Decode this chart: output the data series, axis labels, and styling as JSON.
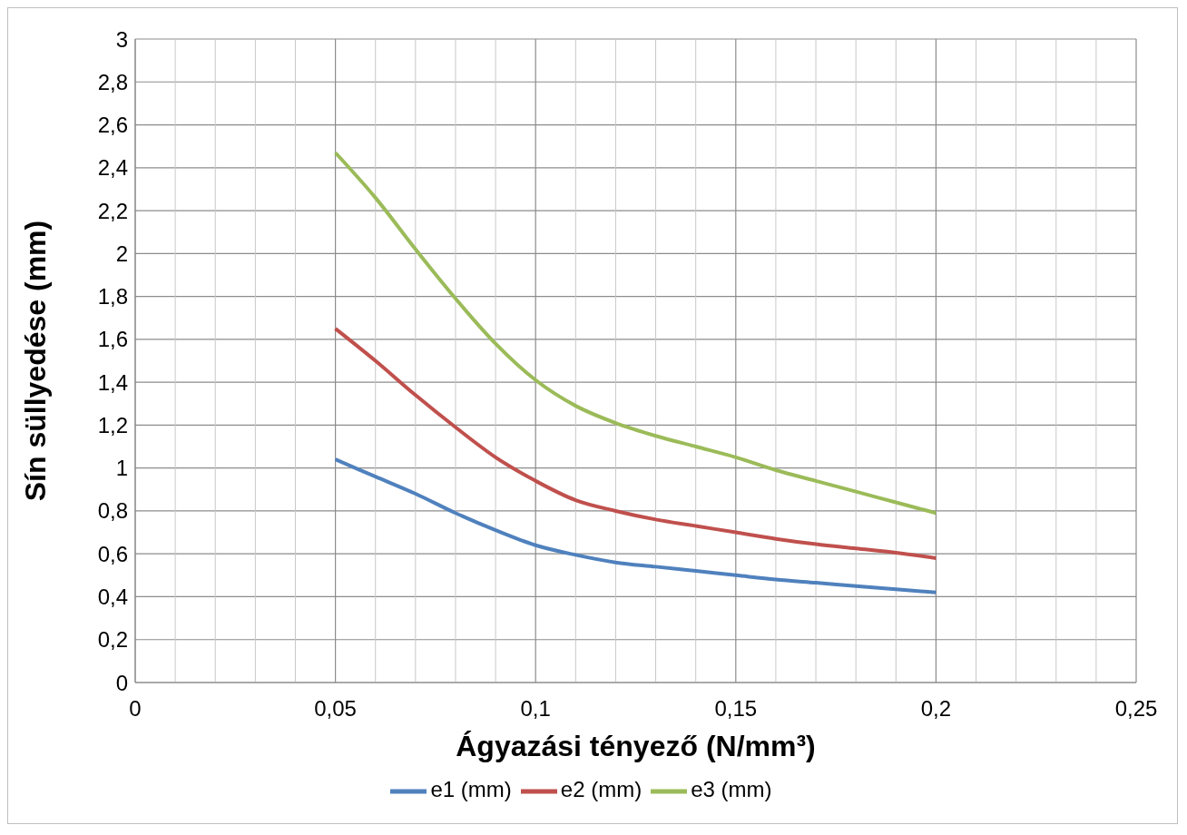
{
  "chart_data": {
    "type": "line",
    "xlabel": "Ágyazási tényező (N/mm³)",
    "ylabel": "Sín süllyedése (mm)",
    "x": [
      0.05,
      0.06,
      0.07,
      0.08,
      0.09,
      0.1,
      0.11,
      0.12,
      0.13,
      0.14,
      0.15,
      0.16,
      0.17,
      0.18,
      0.19,
      0.2
    ],
    "series": [
      {
        "name": "e1 (mm)",
        "color": "#4f81bd",
        "values": [
          1.04,
          0.96,
          0.88,
          0.79,
          0.71,
          0.64,
          0.595,
          0.56,
          0.54,
          0.52,
          0.5,
          0.48,
          0.465,
          0.45,
          0.435,
          0.42
        ]
      },
      {
        "name": "e2 (mm)",
        "color": "#c0504d",
        "values": [
          1.65,
          1.5,
          1.34,
          1.19,
          1.05,
          0.94,
          0.85,
          0.8,
          0.76,
          0.73,
          0.7,
          0.67,
          0.645,
          0.625,
          0.605,
          0.58
        ]
      },
      {
        "name": "e3 (mm)",
        "color": "#9bbb59",
        "values": [
          2.47,
          2.26,
          2.02,
          1.79,
          1.58,
          1.41,
          1.29,
          1.21,
          1.15,
          1.1,
          1.05,
          0.99,
          0.94,
          0.89,
          0.84,
          0.79
        ]
      }
    ],
    "xlim": [
      0,
      0.25
    ],
    "xticks": [
      0,
      {
        "value": 0.01,
        "label": null
      },
      {
        "value": 0.02,
        "label": null
      },
      {
        "value": 0.03,
        "label": null
      },
      {
        "value": 0.04,
        "label": null
      },
      {
        "value": 0.05,
        "label": "0,05"
      },
      {
        "value": 0.06,
        "label": null
      },
      {
        "value": 0.07,
        "label": null
      },
      {
        "value": 0.08,
        "label": null
      },
      {
        "value": 0.09,
        "label": null
      },
      {
        "value": 0.1,
        "label": "0,1"
      },
      {
        "value": 0.11,
        "label": null
      },
      {
        "value": 0.12,
        "label": null
      },
      {
        "value": 0.13,
        "label": null
      },
      {
        "value": 0.14,
        "label": null
      },
      {
        "value": 0.15,
        "label": "0,15"
      },
      {
        "value": 0.16,
        "label": null
      },
      {
        "value": 0.17,
        "label": null
      },
      {
        "value": 0.18,
        "label": null
      },
      {
        "value": 0.19,
        "label": null
      },
      {
        "value": 0.2,
        "label": "0,2"
      },
      {
        "value": 0.21,
        "label": null
      },
      {
        "value": 0.22,
        "label": null
      },
      {
        "value": 0.23,
        "label": null
      },
      {
        "value": 0.24,
        "label": null
      },
      {
        "value": 0.25,
        "label": "0,25"
      }
    ],
    "ylim": [
      0,
      3
    ],
    "yticks": [
      0,
      {
        "value": 0.2,
        "label": "0,2"
      },
      {
        "value": 0.4,
        "label": "0,4"
      },
      {
        "value": 0.6,
        "label": "0,6"
      },
      {
        "value": 0.8,
        "label": "0,8"
      },
      1,
      {
        "value": 1.2,
        "label": "1,2"
      },
      {
        "value": 1.4,
        "label": "1,4"
      },
      {
        "value": 1.6,
        "label": "1,6"
      },
      {
        "value": 1.8,
        "label": "1,8"
      },
      2,
      {
        "value": 2.2,
        "label": "2,2"
      },
      {
        "value": 2.4,
        "label": "2,4"
      },
      {
        "value": 2.6,
        "label": "2,6"
      },
      {
        "value": 2.8,
        "label": "2,8"
      },
      3
    ],
    "grid": true,
    "legend": "bottom",
    "marker": "none",
    "line_style": "solid"
  }
}
